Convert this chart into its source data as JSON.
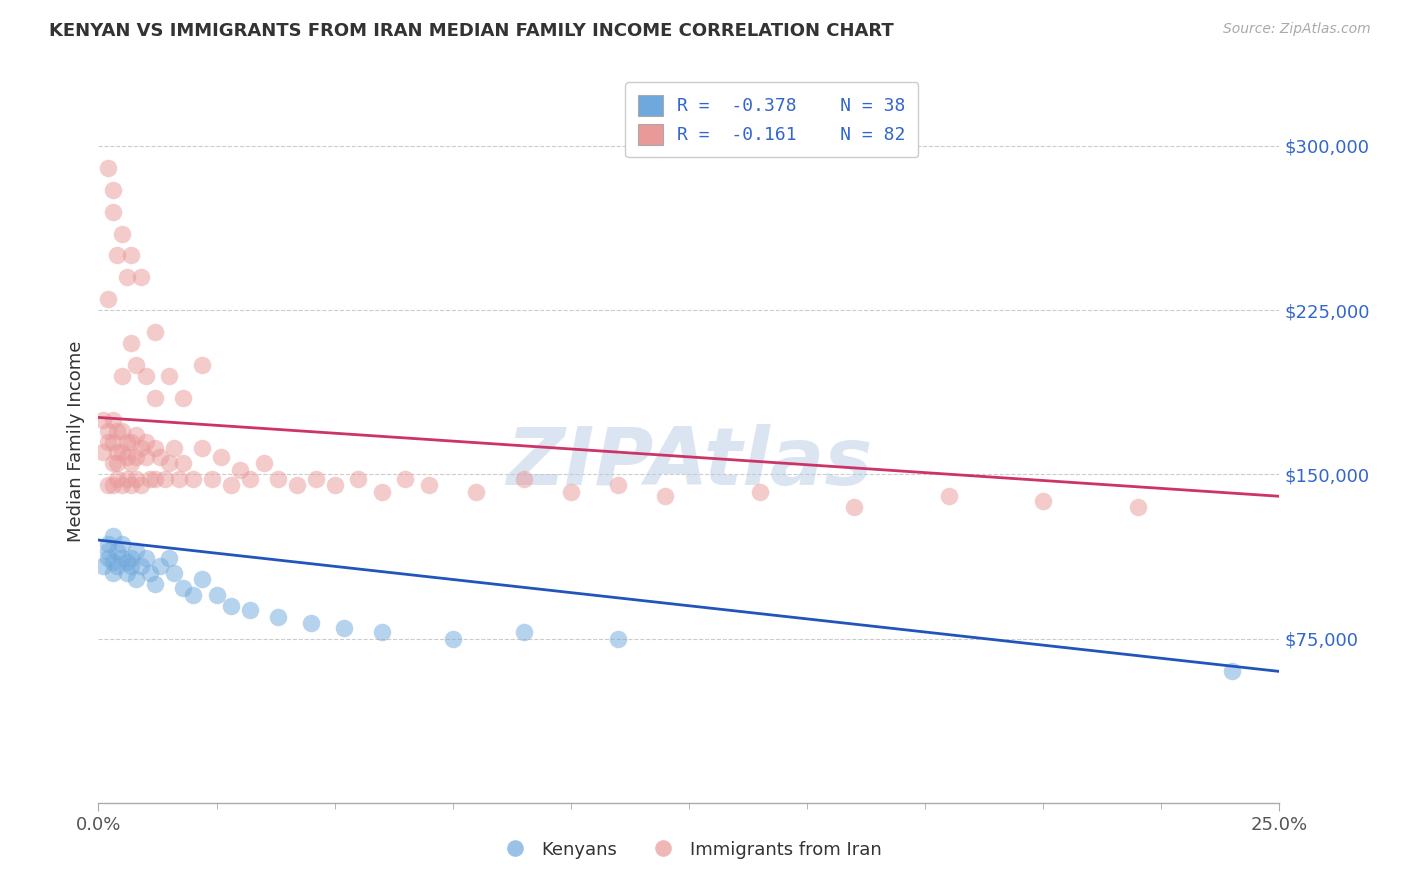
{
  "title": "KENYAN VS IMMIGRANTS FROM IRAN MEDIAN FAMILY INCOME CORRELATION CHART",
  "source_text": "Source: ZipAtlas.com",
  "ylabel": "Median Family Income",
  "xlim": [
    0.0,
    0.25
  ],
  "ylim": [
    0,
    330000
  ],
  "ytick_positions": [
    75000,
    150000,
    225000,
    300000
  ],
  "ytick_labels": [
    "$75,000",
    "$150,000",
    "$225,000",
    "$300,000"
  ],
  "grid_color": "#cccccc",
  "background_color": "#ffffff",
  "watermark": "ZIPAtlas",
  "legend_line1": "R =  -0.378    N = 38",
  "legend_line2": "R =  -0.161    N = 82",
  "legend_label_blue": "Kenyans",
  "legend_label_pink": "Immigrants from Iran",
  "blue_color": "#6fa8dc",
  "pink_color": "#ea9999",
  "line_blue": "#2255bb",
  "line_pink": "#cc3366",
  "blue_scatter_x": [
    0.001,
    0.002,
    0.002,
    0.002,
    0.003,
    0.003,
    0.003,
    0.004,
    0.004,
    0.005,
    0.005,
    0.006,
    0.006,
    0.007,
    0.007,
    0.008,
    0.008,
    0.009,
    0.01,
    0.011,
    0.012,
    0.013,
    0.015,
    0.016,
    0.018,
    0.02,
    0.022,
    0.025,
    0.028,
    0.032,
    0.038,
    0.045,
    0.052,
    0.06,
    0.075,
    0.09,
    0.11,
    0.24
  ],
  "blue_scatter_y": [
    108000,
    115000,
    112000,
    118000,
    110000,
    105000,
    122000,
    108000,
    115000,
    112000,
    118000,
    105000,
    110000,
    112000,
    108000,
    115000,
    102000,
    108000,
    112000,
    105000,
    100000,
    108000,
    112000,
    105000,
    98000,
    95000,
    102000,
    95000,
    90000,
    88000,
    85000,
    82000,
    80000,
    78000,
    75000,
    78000,
    75000,
    60000
  ],
  "pink_scatter_x": [
    0.001,
    0.001,
    0.002,
    0.002,
    0.002,
    0.003,
    0.003,
    0.003,
    0.003,
    0.004,
    0.004,
    0.004,
    0.004,
    0.005,
    0.005,
    0.005,
    0.006,
    0.006,
    0.006,
    0.007,
    0.007,
    0.007,
    0.008,
    0.008,
    0.008,
    0.009,
    0.009,
    0.01,
    0.01,
    0.011,
    0.012,
    0.012,
    0.013,
    0.014,
    0.015,
    0.016,
    0.017,
    0.018,
    0.02,
    0.022,
    0.024,
    0.026,
    0.028,
    0.03,
    0.032,
    0.035,
    0.038,
    0.042,
    0.046,
    0.05,
    0.055,
    0.06,
    0.065,
    0.07,
    0.08,
    0.09,
    0.1,
    0.11,
    0.12,
    0.14,
    0.16,
    0.18,
    0.2,
    0.22,
    0.002,
    0.003,
    0.004,
    0.005,
    0.006,
    0.007,
    0.008,
    0.01,
    0.012,
    0.015,
    0.018,
    0.022,
    0.002,
    0.003,
    0.005,
    0.007,
    0.009,
    0.012
  ],
  "pink_scatter_y": [
    160000,
    175000,
    165000,
    145000,
    170000,
    155000,
    145000,
    165000,
    175000,
    148000,
    160000,
    170000,
    155000,
    145000,
    160000,
    170000,
    148000,
    158000,
    165000,
    155000,
    165000,
    145000,
    158000,
    168000,
    148000,
    162000,
    145000,
    158000,
    165000,
    148000,
    162000,
    148000,
    158000,
    148000,
    155000,
    162000,
    148000,
    155000,
    148000,
    162000,
    148000,
    158000,
    145000,
    152000,
    148000,
    155000,
    148000,
    145000,
    148000,
    145000,
    148000,
    142000,
    148000,
    145000,
    142000,
    148000,
    142000,
    145000,
    140000,
    142000,
    135000,
    140000,
    138000,
    135000,
    230000,
    270000,
    250000,
    195000,
    240000,
    210000,
    200000,
    195000,
    185000,
    195000,
    185000,
    200000,
    290000,
    280000,
    260000,
    250000,
    240000,
    215000
  ],
  "blue_line_x0": 0.0,
  "blue_line_x1": 0.25,
  "blue_line_y0": 120000,
  "blue_line_y1": 60000,
  "pink_line_x0": 0.0,
  "pink_line_x1": 0.25,
  "pink_line_y0": 176000,
  "pink_line_y1": 140000
}
